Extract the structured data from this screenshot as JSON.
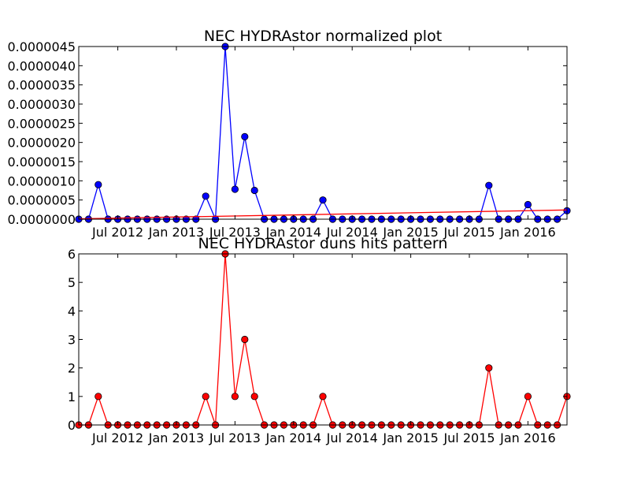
{
  "chart_data": [
    {
      "type": "line",
      "title": "NEC HYDRAstor normalized plot",
      "xlabel": "",
      "ylabel": "",
      "ylim": [
        0,
        4.5e-06
      ],
      "y_ticks": [
        "0.0000000",
        "0.0000005",
        "0.0000010",
        "0.0000015",
        "0.0000020",
        "0.0000025",
        "0.0000030",
        "0.0000035",
        "0.0000040",
        "0.0000045"
      ],
      "x_tick_labels": [
        "Jul 2012",
        "Jan 2013",
        "Jul 2013",
        "Jan 2014",
        "Jul 2014",
        "Jan 2015",
        "Jul 2015",
        "Jan 2016"
      ],
      "x_start": "2012-03",
      "x_end": "2016-05",
      "grid": false,
      "legend": "none",
      "series": [
        {
          "color": "#0000ff",
          "marker": "circle",
          "x": [
            "2012-03",
            "2012-04",
            "2012-05",
            "2012-06",
            "2012-07",
            "2012-08",
            "2012-09",
            "2012-10",
            "2012-11",
            "2012-12",
            "2013-01",
            "2013-02",
            "2013-03",
            "2013-04",
            "2013-05",
            "2013-06",
            "2013-07",
            "2013-08",
            "2013-09",
            "2013-10",
            "2013-11",
            "2013-12",
            "2014-01",
            "2014-02",
            "2014-03",
            "2014-04",
            "2014-05",
            "2014-06",
            "2014-07",
            "2014-08",
            "2014-09",
            "2014-10",
            "2014-11",
            "2014-12",
            "2015-01",
            "2015-02",
            "2015-03",
            "2015-04",
            "2015-05",
            "2015-06",
            "2015-07",
            "2015-08",
            "2015-09",
            "2015-10",
            "2015-11",
            "2015-12",
            "2016-01",
            "2016-02",
            "2016-03",
            "2016-04",
            "2016-05"
          ],
          "values": [
            0,
            0,
            9e-07,
            0,
            0,
            0,
            0,
            0,
            0,
            0,
            0,
            0,
            0,
            6e-07,
            0,
            4.5e-06,
            7.8e-07,
            2.15e-06,
            7.5e-07,
            0,
            0,
            0,
            0,
            0,
            0,
            5e-07,
            0,
            0,
            0,
            0,
            0,
            0,
            0,
            0,
            0,
            0,
            0,
            0,
            0,
            0,
            0,
            0,
            8.8e-07,
            0,
            0,
            0,
            3.8e-07,
            0,
            0,
            0,
            2.2e-07
          ]
        },
        {
          "color": "#ff0000",
          "marker": "none",
          "x": [
            "2012-03",
            "2016-05"
          ],
          "values": [
            1e-08,
            2.4e-07
          ]
        }
      ]
    },
    {
      "type": "line",
      "title": "NEC HYDRAstor duns hits pattern",
      "xlabel": "",
      "ylabel": "",
      "ylim": [
        0,
        6
      ],
      "y_ticks": [
        "0",
        "1",
        "2",
        "3",
        "4",
        "5",
        "6"
      ],
      "x_tick_labels": [
        "Jul 2012",
        "Jan 2013",
        "Jul 2013",
        "Jan 2014",
        "Jul 2014",
        "Jan 2015",
        "Jul 2015",
        "Jan 2016"
      ],
      "x_start": "2012-03",
      "x_end": "2016-05",
      "grid": false,
      "legend": "none",
      "series": [
        {
          "color": "#ff0000",
          "marker": "circle",
          "x": [
            "2012-03",
            "2012-04",
            "2012-05",
            "2012-06",
            "2012-07",
            "2012-08",
            "2012-09",
            "2012-10",
            "2012-11",
            "2012-12",
            "2013-01",
            "2013-02",
            "2013-03",
            "2013-04",
            "2013-05",
            "2013-06",
            "2013-07",
            "2013-08",
            "2013-09",
            "2013-10",
            "2013-11",
            "2013-12",
            "2014-01",
            "2014-02",
            "2014-03",
            "2014-04",
            "2014-05",
            "2014-06",
            "2014-07",
            "2014-08",
            "2014-09",
            "2014-10",
            "2014-11",
            "2014-12",
            "2015-01",
            "2015-02",
            "2015-03",
            "2015-04",
            "2015-05",
            "2015-06",
            "2015-07",
            "2015-08",
            "2015-09",
            "2015-10",
            "2015-11",
            "2015-12",
            "2016-01",
            "2016-02",
            "2016-03",
            "2016-04",
            "2016-05"
          ],
          "values": [
            0,
            0,
            1,
            0,
            0,
            0,
            0,
            0,
            0,
            0,
            0,
            0,
            0,
            1,
            0,
            6,
            1,
            3,
            1,
            0,
            0,
            0,
            0,
            0,
            0,
            1,
            0,
            0,
            0,
            0,
            0,
            0,
            0,
            0,
            0,
            0,
            0,
            0,
            0,
            0,
            0,
            0,
            2,
            0,
            0,
            0,
            1,
            0,
            0,
            0,
            1
          ]
        }
      ]
    }
  ]
}
